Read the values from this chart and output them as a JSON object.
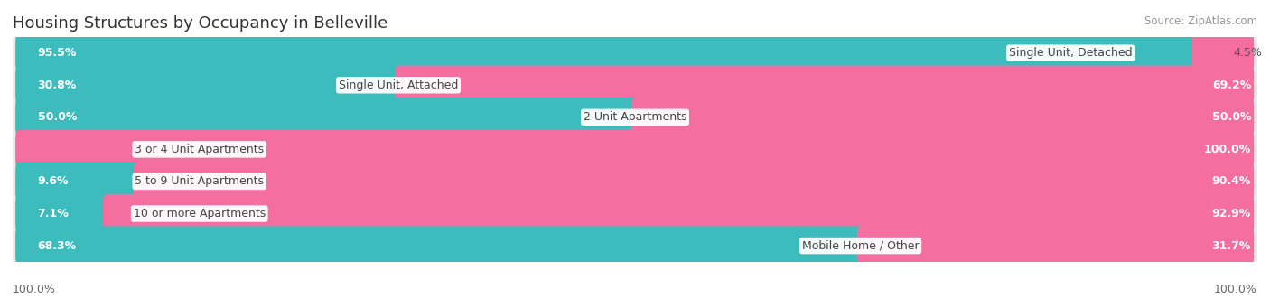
{
  "title": "Housing Structures by Occupancy in Belleville",
  "source": "Source: ZipAtlas.com",
  "categories": [
    "Single Unit, Detached",
    "Single Unit, Attached",
    "2 Unit Apartments",
    "3 or 4 Unit Apartments",
    "5 to 9 Unit Apartments",
    "10 or more Apartments",
    "Mobile Home / Other"
  ],
  "owner_pct": [
    95.5,
    30.8,
    50.0,
    0.0,
    9.6,
    7.1,
    68.3
  ],
  "renter_pct": [
    4.5,
    69.2,
    50.0,
    100.0,
    90.4,
    92.9,
    31.7
  ],
  "owner_color": "#3DBCBE",
  "renter_color": "#F46FA0",
  "renter_color_light": "#F9C0D5",
  "owner_color_light": "#A8DCDC",
  "row_bg_color": "#e8e8e8",
  "row_inner_bg": "#f4f4f4",
  "title_fontsize": 13,
  "bar_fontsize": 9,
  "legend_fontsize": 9.5,
  "source_fontsize": 8.5,
  "x_axis_fontsize": 9
}
